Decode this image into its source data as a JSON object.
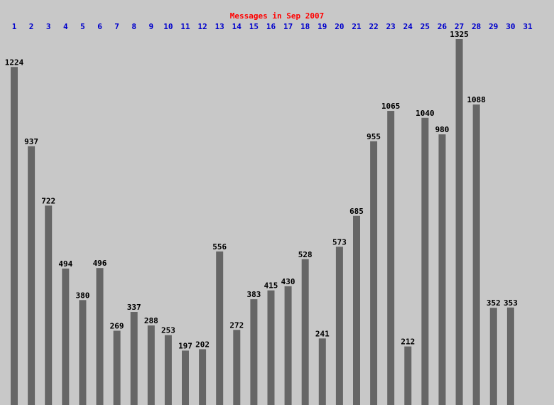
{
  "chart_data": {
    "type": "bar",
    "title": "Messages in Sep 2007",
    "categories": [
      "1",
      "2",
      "3",
      "4",
      "5",
      "6",
      "7",
      "8",
      "9",
      "10",
      "11",
      "12",
      "13",
      "14",
      "15",
      "16",
      "17",
      "18",
      "19",
      "20",
      "21",
      "22",
      "23",
      "24",
      "25",
      "26",
      "27",
      "28",
      "29",
      "30",
      "31"
    ],
    "values": [
      1224,
      937,
      722,
      494,
      380,
      496,
      269,
      337,
      288,
      253,
      197,
      202,
      556,
      272,
      383,
      415,
      430,
      528,
      241,
      573,
      685,
      955,
      1065,
      212,
      1040,
      980,
      1325,
      1088,
      352,
      353,
      null
    ],
    "color": "#666666"
  }
}
